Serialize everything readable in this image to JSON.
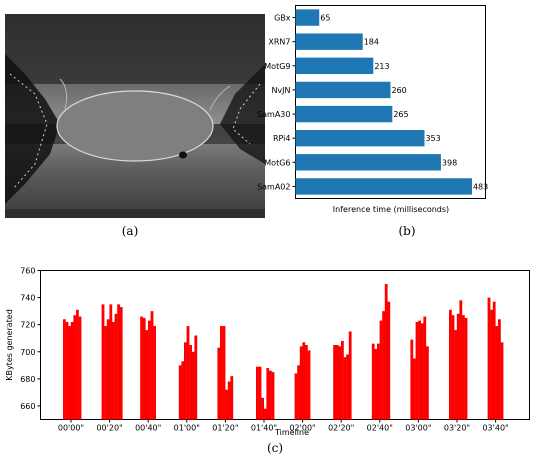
{
  "captions": {
    "a": "(a)",
    "b": "(b)",
    "c": "(c)"
  },
  "colors": {
    "bar_chart": "#1f77b4",
    "timeline": "#ff0000",
    "axis": "#000000"
  },
  "image_a": {
    "description_icon": "depth-map-image"
  },
  "chart_data": [
    {
      "type": "bar",
      "orientation": "horizontal",
      "title": "",
      "xlabel": "Inference time (milliseconds)",
      "ylabel": "",
      "categories": [
        "GBx",
        "XRN7",
        "MotG9",
        "NvJN",
        "SamA30",
        "RPi4",
        "MotG6",
        "SamA02"
      ],
      "values": [
        65,
        184,
        213,
        260,
        265,
        353,
        398,
        483
      ],
      "xlim": [
        0,
        520
      ],
      "data_labels": true
    },
    {
      "type": "bar",
      "title": "",
      "xlabel": "Timeline",
      "ylabel": "KBytes generated",
      "ylim": [
        650,
        760
      ],
      "yticks": [
        660,
        680,
        700,
        720,
        740,
        760
      ],
      "xticks": [
        "00'00\"",
        "00'20\"",
        "00'40\"",
        "01'00\"",
        "01'20\"",
        "01'40\"",
        "02'00\"",
        "02'20\"",
        "02'40\"",
        "03'00\"",
        "03'20\"",
        "03'40\""
      ],
      "bursts": [
        [
          724,
          722,
          719,
          722,
          727,
          731,
          726
        ],
        [
          735,
          719,
          724,
          735,
          722,
          728,
          735,
          733
        ],
        [
          726,
          725,
          716,
          723,
          730,
          719
        ],
        [
          690,
          693,
          707,
          719,
          705,
          700,
          712
        ],
        [
          703,
          719,
          719,
          672,
          678,
          682
        ],
        [
          689,
          689,
          666,
          658,
          688,
          686,
          685
        ],
        [
          684,
          690,
          704,
          707,
          705,
          701
        ],
        [
          705,
          705,
          704,
          708,
          696,
          698,
          715
        ],
        [
          706,
          702,
          706,
          723,
          730,
          750,
          737
        ],
        [
          709,
          695,
          722,
          723,
          721,
          726,
          704
        ],
        [
          731,
          727,
          716,
          728,
          738,
          727,
          725
        ],
        [
          740,
          731,
          737,
          719,
          724,
          707
        ]
      ]
    }
  ]
}
